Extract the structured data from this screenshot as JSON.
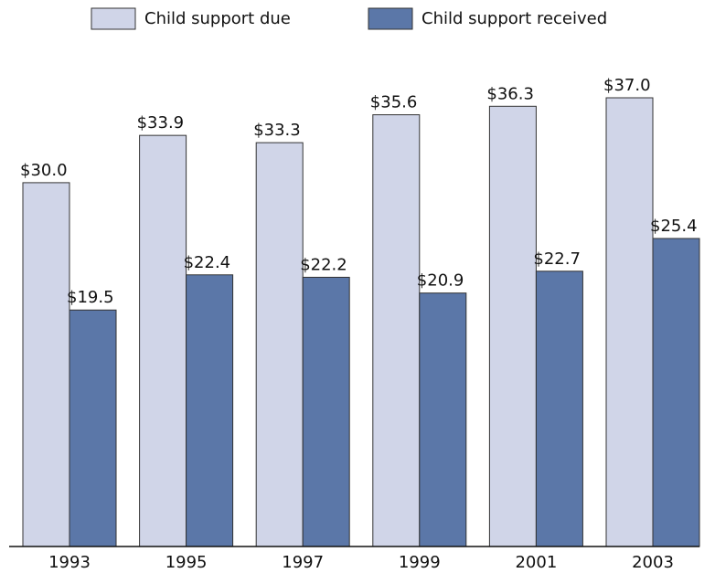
{
  "chart_data": {
    "type": "bar",
    "categories": [
      "1993",
      "1995",
      "1997",
      "1999",
      "2001",
      "2003"
    ],
    "series": [
      {
        "name": "Child support due",
        "color": "#d0d5e8",
        "values": [
          30.0,
          33.9,
          33.3,
          35.6,
          36.3,
          37.0
        ],
        "value_labels": [
          "$30.0",
          "$33.9",
          "$33.3",
          "$35.6",
          "$36.3",
          "$37.0"
        ]
      },
      {
        "name": "Child support received",
        "color": "#5b77a8",
        "values": [
          19.5,
          22.4,
          22.2,
          20.9,
          22.7,
          25.4
        ],
        "value_labels": [
          "$19.5",
          "$22.4",
          "$22.2",
          "$20.9",
          "$22.7",
          "$25.4"
        ]
      }
    ]
  }
}
